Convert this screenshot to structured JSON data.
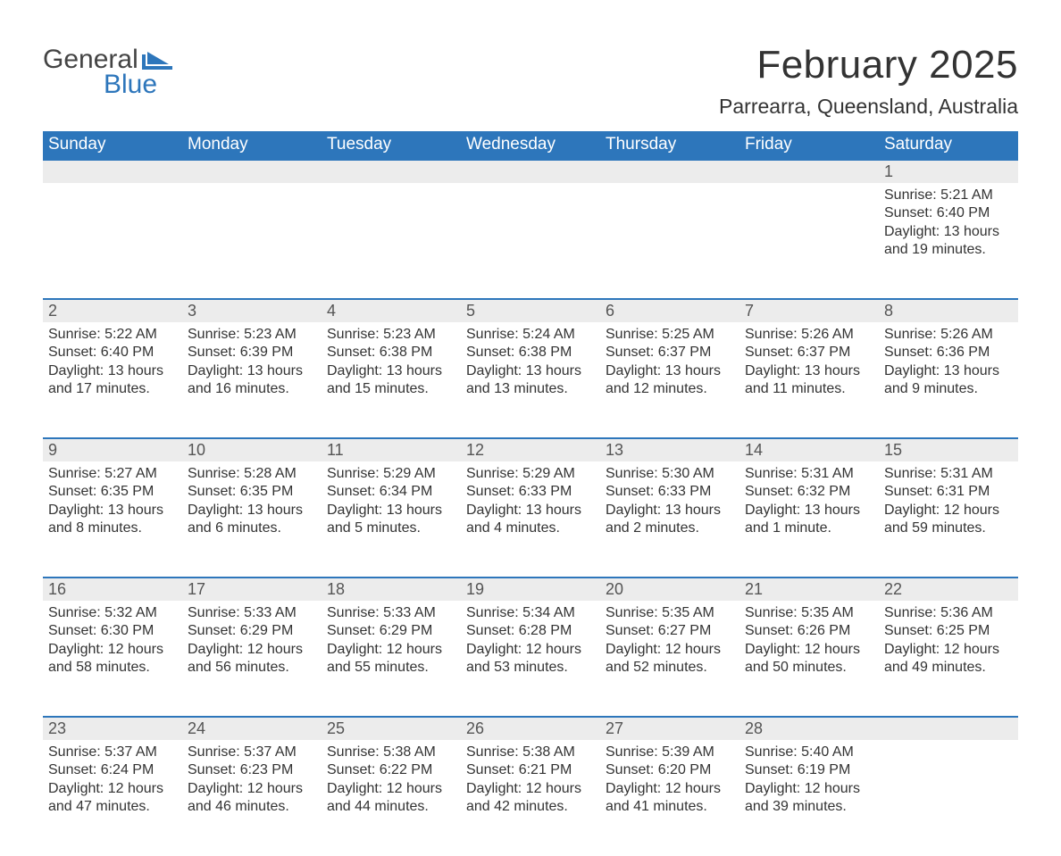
{
  "brand": {
    "word1": "General",
    "word2": "Blue",
    "accent_color": "#2d76bb"
  },
  "title": "February 2025",
  "location": "Parrearra, Queensland, Australia",
  "day_headers": [
    "Sunday",
    "Monday",
    "Tuesday",
    "Wednesday",
    "Thursday",
    "Friday",
    "Saturday"
  ],
  "colors": {
    "header_bg": "#2d76bb",
    "header_text": "#ffffff",
    "daynum_bg": "#ececec",
    "daynum_border": "#2d76bb",
    "text": "#333333",
    "background": "#ffffff"
  },
  "structure": {
    "type": "calendar-table",
    "cols": 7,
    "week_rows": 5,
    "starts_on_col_index": 6,
    "days_in_month": 28
  },
  "weeks": [
    [
      null,
      null,
      null,
      null,
      null,
      null,
      {
        "n": "1",
        "sunrise": "Sunrise: 5:21 AM",
        "sunset": "Sunset: 6:40 PM",
        "daylight": "Daylight: 13 hours and 19 minutes."
      }
    ],
    [
      {
        "n": "2",
        "sunrise": "Sunrise: 5:22 AM",
        "sunset": "Sunset: 6:40 PM",
        "daylight": "Daylight: 13 hours and 17 minutes."
      },
      {
        "n": "3",
        "sunrise": "Sunrise: 5:23 AM",
        "sunset": "Sunset: 6:39 PM",
        "daylight": "Daylight: 13 hours and 16 minutes."
      },
      {
        "n": "4",
        "sunrise": "Sunrise: 5:23 AM",
        "sunset": "Sunset: 6:38 PM",
        "daylight": "Daylight: 13 hours and 15 minutes."
      },
      {
        "n": "5",
        "sunrise": "Sunrise: 5:24 AM",
        "sunset": "Sunset: 6:38 PM",
        "daylight": "Daylight: 13 hours and 13 minutes."
      },
      {
        "n": "6",
        "sunrise": "Sunrise: 5:25 AM",
        "sunset": "Sunset: 6:37 PM",
        "daylight": "Daylight: 13 hours and 12 minutes."
      },
      {
        "n": "7",
        "sunrise": "Sunrise: 5:26 AM",
        "sunset": "Sunset: 6:37 PM",
        "daylight": "Daylight: 13 hours and 11 minutes."
      },
      {
        "n": "8",
        "sunrise": "Sunrise: 5:26 AM",
        "sunset": "Sunset: 6:36 PM",
        "daylight": "Daylight: 13 hours and 9 minutes."
      }
    ],
    [
      {
        "n": "9",
        "sunrise": "Sunrise: 5:27 AM",
        "sunset": "Sunset: 6:35 PM",
        "daylight": "Daylight: 13 hours and 8 minutes."
      },
      {
        "n": "10",
        "sunrise": "Sunrise: 5:28 AM",
        "sunset": "Sunset: 6:35 PM",
        "daylight": "Daylight: 13 hours and 6 minutes."
      },
      {
        "n": "11",
        "sunrise": "Sunrise: 5:29 AM",
        "sunset": "Sunset: 6:34 PM",
        "daylight": "Daylight: 13 hours and 5 minutes."
      },
      {
        "n": "12",
        "sunrise": "Sunrise: 5:29 AM",
        "sunset": "Sunset: 6:33 PM",
        "daylight": "Daylight: 13 hours and 4 minutes."
      },
      {
        "n": "13",
        "sunrise": "Sunrise: 5:30 AM",
        "sunset": "Sunset: 6:33 PM",
        "daylight": "Daylight: 13 hours and 2 minutes."
      },
      {
        "n": "14",
        "sunrise": "Sunrise: 5:31 AM",
        "sunset": "Sunset: 6:32 PM",
        "daylight": "Daylight: 13 hours and 1 minute."
      },
      {
        "n": "15",
        "sunrise": "Sunrise: 5:31 AM",
        "sunset": "Sunset: 6:31 PM",
        "daylight": "Daylight: 12 hours and 59 minutes."
      }
    ],
    [
      {
        "n": "16",
        "sunrise": "Sunrise: 5:32 AM",
        "sunset": "Sunset: 6:30 PM",
        "daylight": "Daylight: 12 hours and 58 minutes."
      },
      {
        "n": "17",
        "sunrise": "Sunrise: 5:33 AM",
        "sunset": "Sunset: 6:29 PM",
        "daylight": "Daylight: 12 hours and 56 minutes."
      },
      {
        "n": "18",
        "sunrise": "Sunrise: 5:33 AM",
        "sunset": "Sunset: 6:29 PM",
        "daylight": "Daylight: 12 hours and 55 minutes."
      },
      {
        "n": "19",
        "sunrise": "Sunrise: 5:34 AM",
        "sunset": "Sunset: 6:28 PM",
        "daylight": "Daylight: 12 hours and 53 minutes."
      },
      {
        "n": "20",
        "sunrise": "Sunrise: 5:35 AM",
        "sunset": "Sunset: 6:27 PM",
        "daylight": "Daylight: 12 hours and 52 minutes."
      },
      {
        "n": "21",
        "sunrise": "Sunrise: 5:35 AM",
        "sunset": "Sunset: 6:26 PM",
        "daylight": "Daylight: 12 hours and 50 minutes."
      },
      {
        "n": "22",
        "sunrise": "Sunrise: 5:36 AM",
        "sunset": "Sunset: 6:25 PM",
        "daylight": "Daylight: 12 hours and 49 minutes."
      }
    ],
    [
      {
        "n": "23",
        "sunrise": "Sunrise: 5:37 AM",
        "sunset": "Sunset: 6:24 PM",
        "daylight": "Daylight: 12 hours and 47 minutes."
      },
      {
        "n": "24",
        "sunrise": "Sunrise: 5:37 AM",
        "sunset": "Sunset: 6:23 PM",
        "daylight": "Daylight: 12 hours and 46 minutes."
      },
      {
        "n": "25",
        "sunrise": "Sunrise: 5:38 AM",
        "sunset": "Sunset: 6:22 PM",
        "daylight": "Daylight: 12 hours and 44 minutes."
      },
      {
        "n": "26",
        "sunrise": "Sunrise: 5:38 AM",
        "sunset": "Sunset: 6:21 PM",
        "daylight": "Daylight: 12 hours and 42 minutes."
      },
      {
        "n": "27",
        "sunrise": "Sunrise: 5:39 AM",
        "sunset": "Sunset: 6:20 PM",
        "daylight": "Daylight: 12 hours and 41 minutes."
      },
      {
        "n": "28",
        "sunrise": "Sunrise: 5:40 AM",
        "sunset": "Sunset: 6:19 PM",
        "daylight": "Daylight: 12 hours and 39 minutes."
      },
      null
    ]
  ]
}
